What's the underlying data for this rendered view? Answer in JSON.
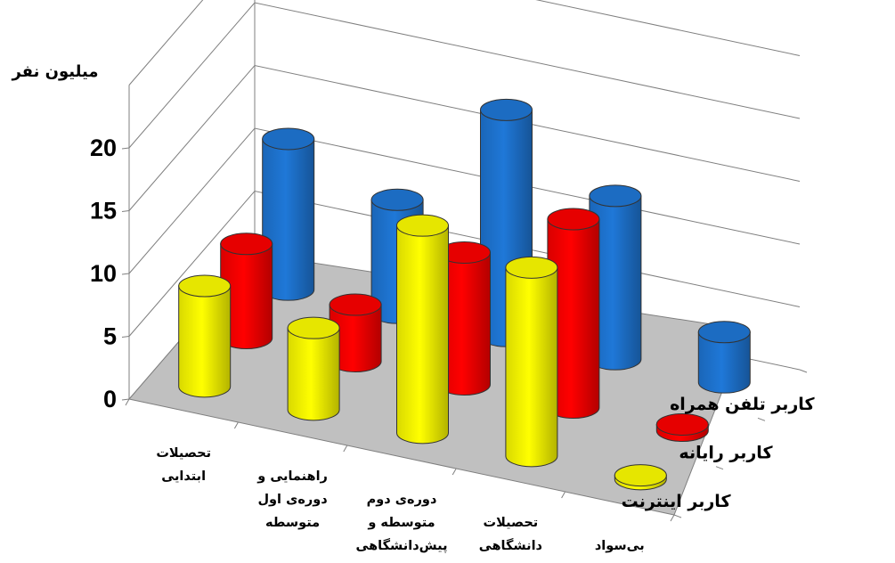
{
  "chart_data": {
    "type": "bar",
    "subtype": "3d-cylinder",
    "ylabel": "میلیون نفر",
    "ylim": [
      0,
      20
    ],
    "yticks": [
      "0",
      "5",
      "10",
      "15",
      "20"
    ],
    "categories": [
      [
        "تحصیلات",
        "ابتدایی"
      ],
      [
        "راهنمایی و",
        "دوره‌ی اول",
        "متوسطه"
      ],
      [
        "دوره‌ی دوم",
        "متوسطه و",
        "پیش‌دانشگاهی"
      ],
      [
        "تحصیلات",
        "دانشگاهی"
      ],
      [
        "بی‌سواد"
      ]
    ],
    "series": [
      {
        "name": "کاربر اینترنت",
        "color": "#ffff00",
        "values": [
          8,
          6.5,
          16.5,
          15,
          0.3
        ]
      },
      {
        "name": "کاربر رایانه",
        "color": "#ff0000",
        "values": [
          7.5,
          4.5,
          10.5,
          15,
          0.5
        ]
      },
      {
        "name": "کاربر تلفن همراه",
        "color": "#1f78d8",
        "values": [
          12,
          9,
          18,
          13,
          4
        ]
      }
    ],
    "grid": true,
    "legend": "series labels on depth axis (right)"
  }
}
